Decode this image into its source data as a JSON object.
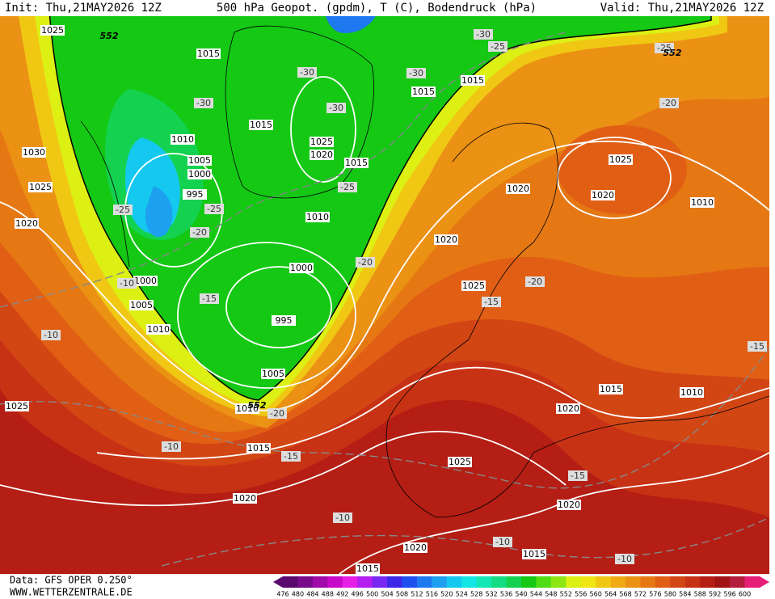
{
  "header": {
    "init": "Init: Thu,21MAY2026 12Z",
    "title": "500 hPa Geopot. (gpdm), T (C), Bodendruck (hPa)",
    "valid": "Valid: Thu,21MAY2026 12Z"
  },
  "footer": {
    "data": "Data: GFS OPER 0.250°",
    "site": "WWW.WETTERZENTRALE.DE"
  },
  "colorbar": {
    "labels": [
      "476",
      "480",
      "484",
      "488",
      "492",
      "496",
      "500",
      "504",
      "508",
      "512",
      "516",
      "520",
      "524",
      "528",
      "532",
      "536",
      "540",
      "544",
      "548",
      "552",
      "556",
      "560",
      "564",
      "568",
      "572",
      "576",
      "580",
      "584",
      "588",
      "592",
      "596",
      "600"
    ],
    "colors": [
      "#5a0a6e",
      "#7a0a8c",
      "#a00aa8",
      "#c80ac8",
      "#e61ee6",
      "#b41ef0",
      "#7828f0",
      "#3c28e6",
      "#1e50f0",
      "#1e78f0",
      "#1ea0f0",
      "#14c8f0",
      "#14e6e6",
      "#14e6b4",
      "#14dc82",
      "#14d250",
      "#14c814",
      "#50dc14",
      "#8ce614",
      "#dcf014",
      "#f0e614",
      "#f0c814",
      "#f0aa14",
      "#eb9114",
      "#e67814",
      "#e15f14",
      "#d24614",
      "#c83214",
      "#b41e14",
      "#a01414",
      "#b41e3c",
      "#e61e78"
    ]
  },
  "contour_labels": [
    "552",
    "552",
    "552"
  ],
  "isobar_labels": [
    "1025",
    "1015",
    "1015",
    "1010",
    "1005",
    "1000",
    "995",
    "1025",
    "1020",
    "1015",
    "1010",
    "1000",
    "995",
    "1005",
    "1010",
    "1015",
    "1020",
    "1025",
    "1030",
    "1025",
    "1020",
    "1000",
    "1005",
    "1010",
    "1015",
    "1015",
    "1025",
    "1020",
    "1020",
    "1010",
    "1020",
    "1025",
    "1015",
    "1010",
    "1020",
    "1025",
    "1020",
    "1020",
    "1015",
    "1015"
  ],
  "temperature_labels": [
    "-30",
    "-25",
    "-30",
    "-30",
    "-30",
    "-30",
    "-25",
    "-25",
    "-25",
    "-20",
    "-20",
    "-15",
    "-10",
    "-10",
    "-20",
    "-10",
    "-15",
    "-20",
    "-15",
    "-20",
    "-15",
    "-10",
    "-10",
    "-10",
    "-15",
    "-25"
  ]
}
